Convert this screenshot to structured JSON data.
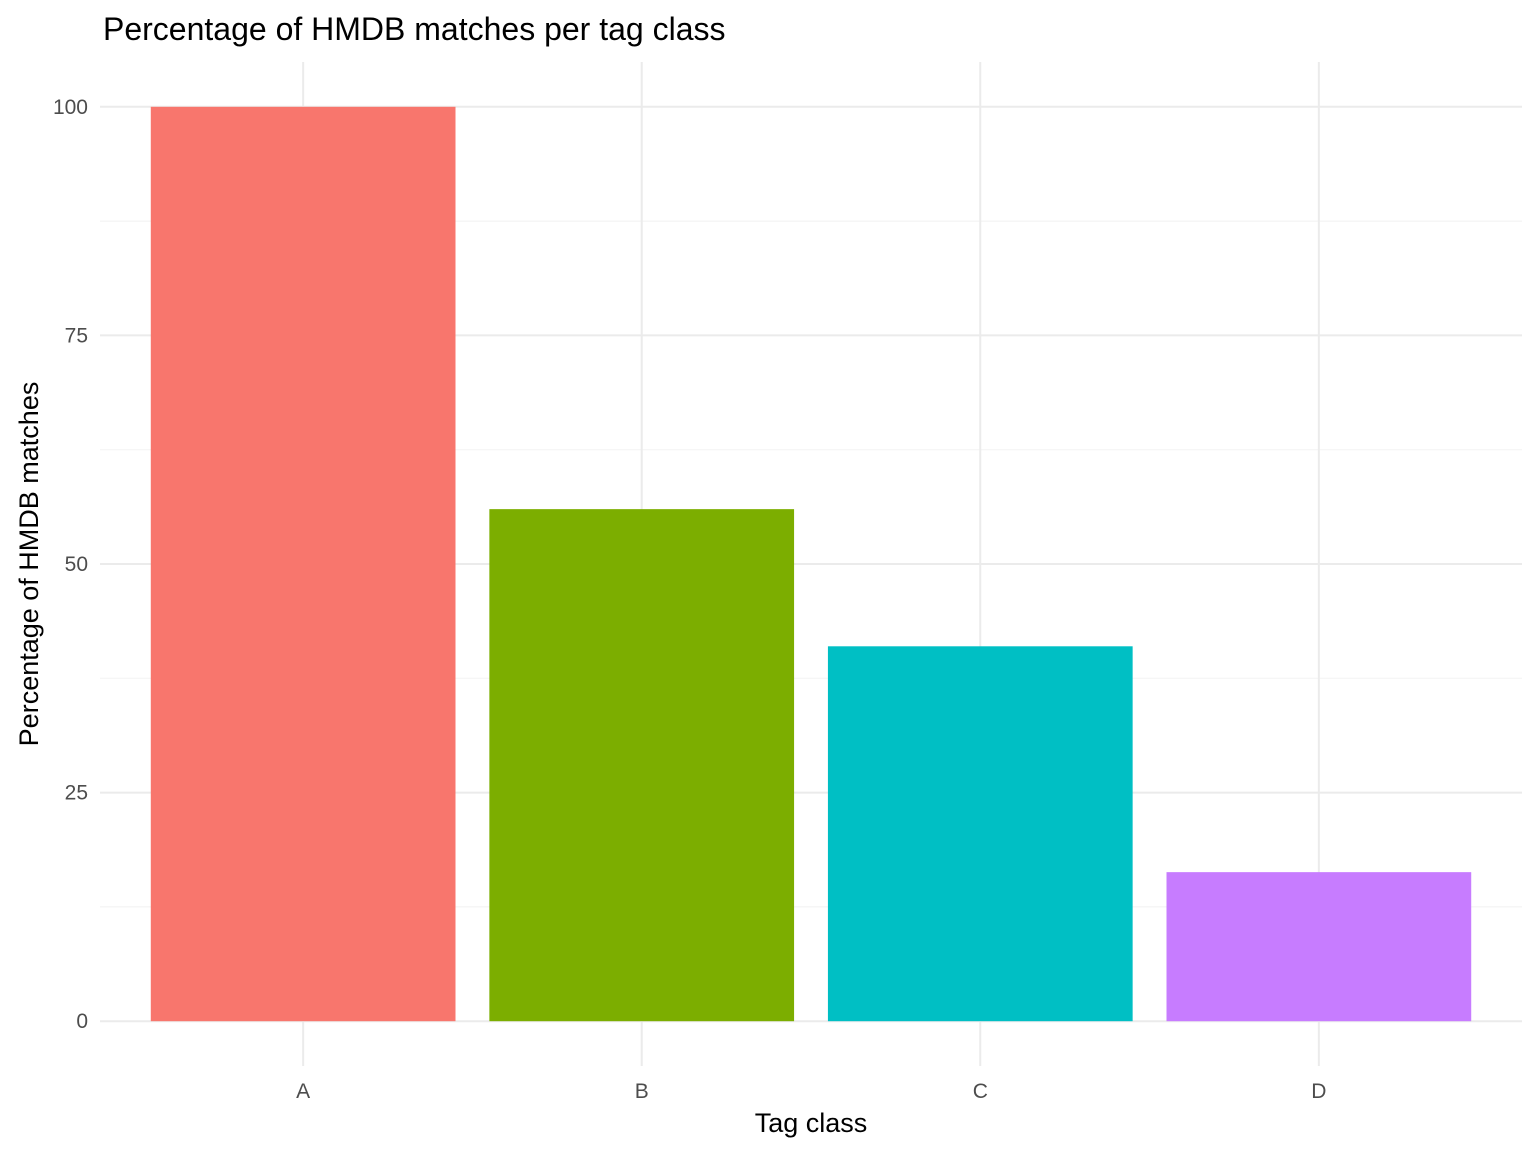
{
  "chart_data": {
    "type": "bar",
    "title": "Percentage of HMDB matches per tag class",
    "xlabel": "Tag class",
    "ylabel": "Percentage of HMDB matches",
    "categories": [
      "A",
      "B",
      "C",
      "D"
    ],
    "values": [
      100,
      56,
      41,
      16.3
    ],
    "ylim": [
      -4.9,
      104.9
    ],
    "yticks": [
      0,
      25,
      50,
      75,
      100
    ],
    "grid": true,
    "legend": "none",
    "colors": [
      "#F8766D",
      "#7CAE00",
      "#00BFC4",
      "#C77CFF"
    ]
  }
}
